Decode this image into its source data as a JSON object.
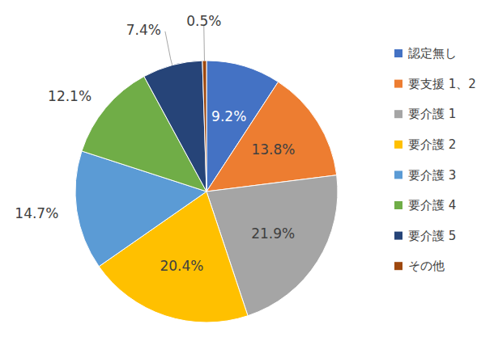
{
  "chart_data": {
    "type": "pie",
    "categories": [
      "認定無し",
      "要支援 1、2",
      "要介護 1",
      "要介護 2",
      "要介護 3",
      "要介護 4",
      "要介護 5",
      "その他"
    ],
    "values": [
      9.2,
      13.8,
      21.9,
      20.4,
      14.7,
      12.1,
      7.4,
      0.5
    ],
    "value_labels": [
      "9.2%",
      "13.8%",
      "21.9%",
      "20.4%",
      "14.7%",
      "12.1%",
      "7.4%",
      "0.5%"
    ],
    "colors": [
      "#4472c4",
      "#ed7d31",
      "#a5a5a5",
      "#ffc000",
      "#5b9bd5",
      "#70ad47",
      "#264478",
      "#9e480e"
    ],
    "data_labels": true,
    "legend": "right"
  }
}
